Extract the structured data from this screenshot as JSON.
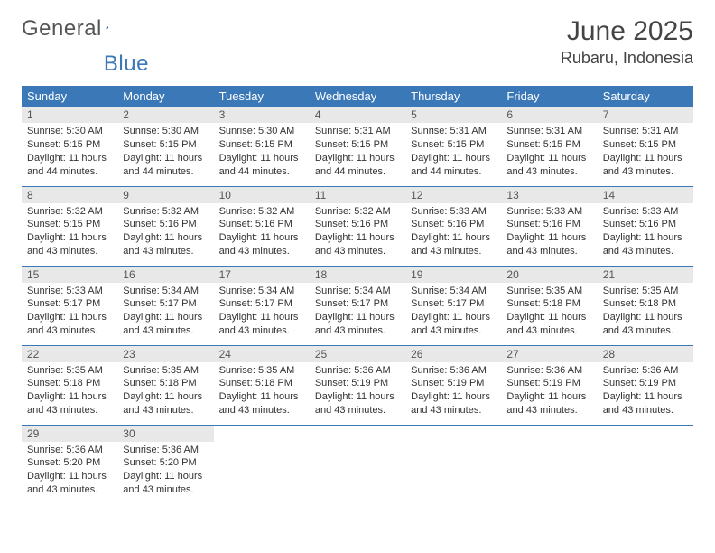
{
  "logo": {
    "text_gray": "General",
    "text_blue": "Blue"
  },
  "header": {
    "month": "June 2025",
    "location": "Rubaru, Indonesia"
  },
  "colors": {
    "header_bg": "#3b78b8",
    "daynum_bg": "#e8e8e8",
    "border": "#3b78b8"
  },
  "weekdays": [
    "Sunday",
    "Monday",
    "Tuesday",
    "Wednesday",
    "Thursday",
    "Friday",
    "Saturday"
  ],
  "days": [
    {
      "n": "1",
      "sr": "5:30 AM",
      "ss": "5:15 PM",
      "dl": "11 hours and 44 minutes."
    },
    {
      "n": "2",
      "sr": "5:30 AM",
      "ss": "5:15 PM",
      "dl": "11 hours and 44 minutes."
    },
    {
      "n": "3",
      "sr": "5:30 AM",
      "ss": "5:15 PM",
      "dl": "11 hours and 44 minutes."
    },
    {
      "n": "4",
      "sr": "5:31 AM",
      "ss": "5:15 PM",
      "dl": "11 hours and 44 minutes."
    },
    {
      "n": "5",
      "sr": "5:31 AM",
      "ss": "5:15 PM",
      "dl": "11 hours and 44 minutes."
    },
    {
      "n": "6",
      "sr": "5:31 AM",
      "ss": "5:15 PM",
      "dl": "11 hours and 43 minutes."
    },
    {
      "n": "7",
      "sr": "5:31 AM",
      "ss": "5:15 PM",
      "dl": "11 hours and 43 minutes."
    },
    {
      "n": "8",
      "sr": "5:32 AM",
      "ss": "5:15 PM",
      "dl": "11 hours and 43 minutes."
    },
    {
      "n": "9",
      "sr": "5:32 AM",
      "ss": "5:16 PM",
      "dl": "11 hours and 43 minutes."
    },
    {
      "n": "10",
      "sr": "5:32 AM",
      "ss": "5:16 PM",
      "dl": "11 hours and 43 minutes."
    },
    {
      "n": "11",
      "sr": "5:32 AM",
      "ss": "5:16 PM",
      "dl": "11 hours and 43 minutes."
    },
    {
      "n": "12",
      "sr": "5:33 AM",
      "ss": "5:16 PM",
      "dl": "11 hours and 43 minutes."
    },
    {
      "n": "13",
      "sr": "5:33 AM",
      "ss": "5:16 PM",
      "dl": "11 hours and 43 minutes."
    },
    {
      "n": "14",
      "sr": "5:33 AM",
      "ss": "5:16 PM",
      "dl": "11 hours and 43 minutes."
    },
    {
      "n": "15",
      "sr": "5:33 AM",
      "ss": "5:17 PM",
      "dl": "11 hours and 43 minutes."
    },
    {
      "n": "16",
      "sr": "5:34 AM",
      "ss": "5:17 PM",
      "dl": "11 hours and 43 minutes."
    },
    {
      "n": "17",
      "sr": "5:34 AM",
      "ss": "5:17 PM",
      "dl": "11 hours and 43 minutes."
    },
    {
      "n": "18",
      "sr": "5:34 AM",
      "ss": "5:17 PM",
      "dl": "11 hours and 43 minutes."
    },
    {
      "n": "19",
      "sr": "5:34 AM",
      "ss": "5:17 PM",
      "dl": "11 hours and 43 minutes."
    },
    {
      "n": "20",
      "sr": "5:35 AM",
      "ss": "5:18 PM",
      "dl": "11 hours and 43 minutes."
    },
    {
      "n": "21",
      "sr": "5:35 AM",
      "ss": "5:18 PM",
      "dl": "11 hours and 43 minutes."
    },
    {
      "n": "22",
      "sr": "5:35 AM",
      "ss": "5:18 PM",
      "dl": "11 hours and 43 minutes."
    },
    {
      "n": "23",
      "sr": "5:35 AM",
      "ss": "5:18 PM",
      "dl": "11 hours and 43 minutes."
    },
    {
      "n": "24",
      "sr": "5:35 AM",
      "ss": "5:18 PM",
      "dl": "11 hours and 43 minutes."
    },
    {
      "n": "25",
      "sr": "5:36 AM",
      "ss": "5:19 PM",
      "dl": "11 hours and 43 minutes."
    },
    {
      "n": "26",
      "sr": "5:36 AM",
      "ss": "5:19 PM",
      "dl": "11 hours and 43 minutes."
    },
    {
      "n": "27",
      "sr": "5:36 AM",
      "ss": "5:19 PM",
      "dl": "11 hours and 43 minutes."
    },
    {
      "n": "28",
      "sr": "5:36 AM",
      "ss": "5:19 PM",
      "dl": "11 hours and 43 minutes."
    },
    {
      "n": "29",
      "sr": "5:36 AM",
      "ss": "5:20 PM",
      "dl": "11 hours and 43 minutes."
    },
    {
      "n": "30",
      "sr": "5:36 AM",
      "ss": "5:20 PM",
      "dl": "11 hours and 43 minutes."
    }
  ],
  "labels": {
    "sunrise": "Sunrise:",
    "sunset": "Sunset:",
    "daylight": "Daylight:"
  }
}
